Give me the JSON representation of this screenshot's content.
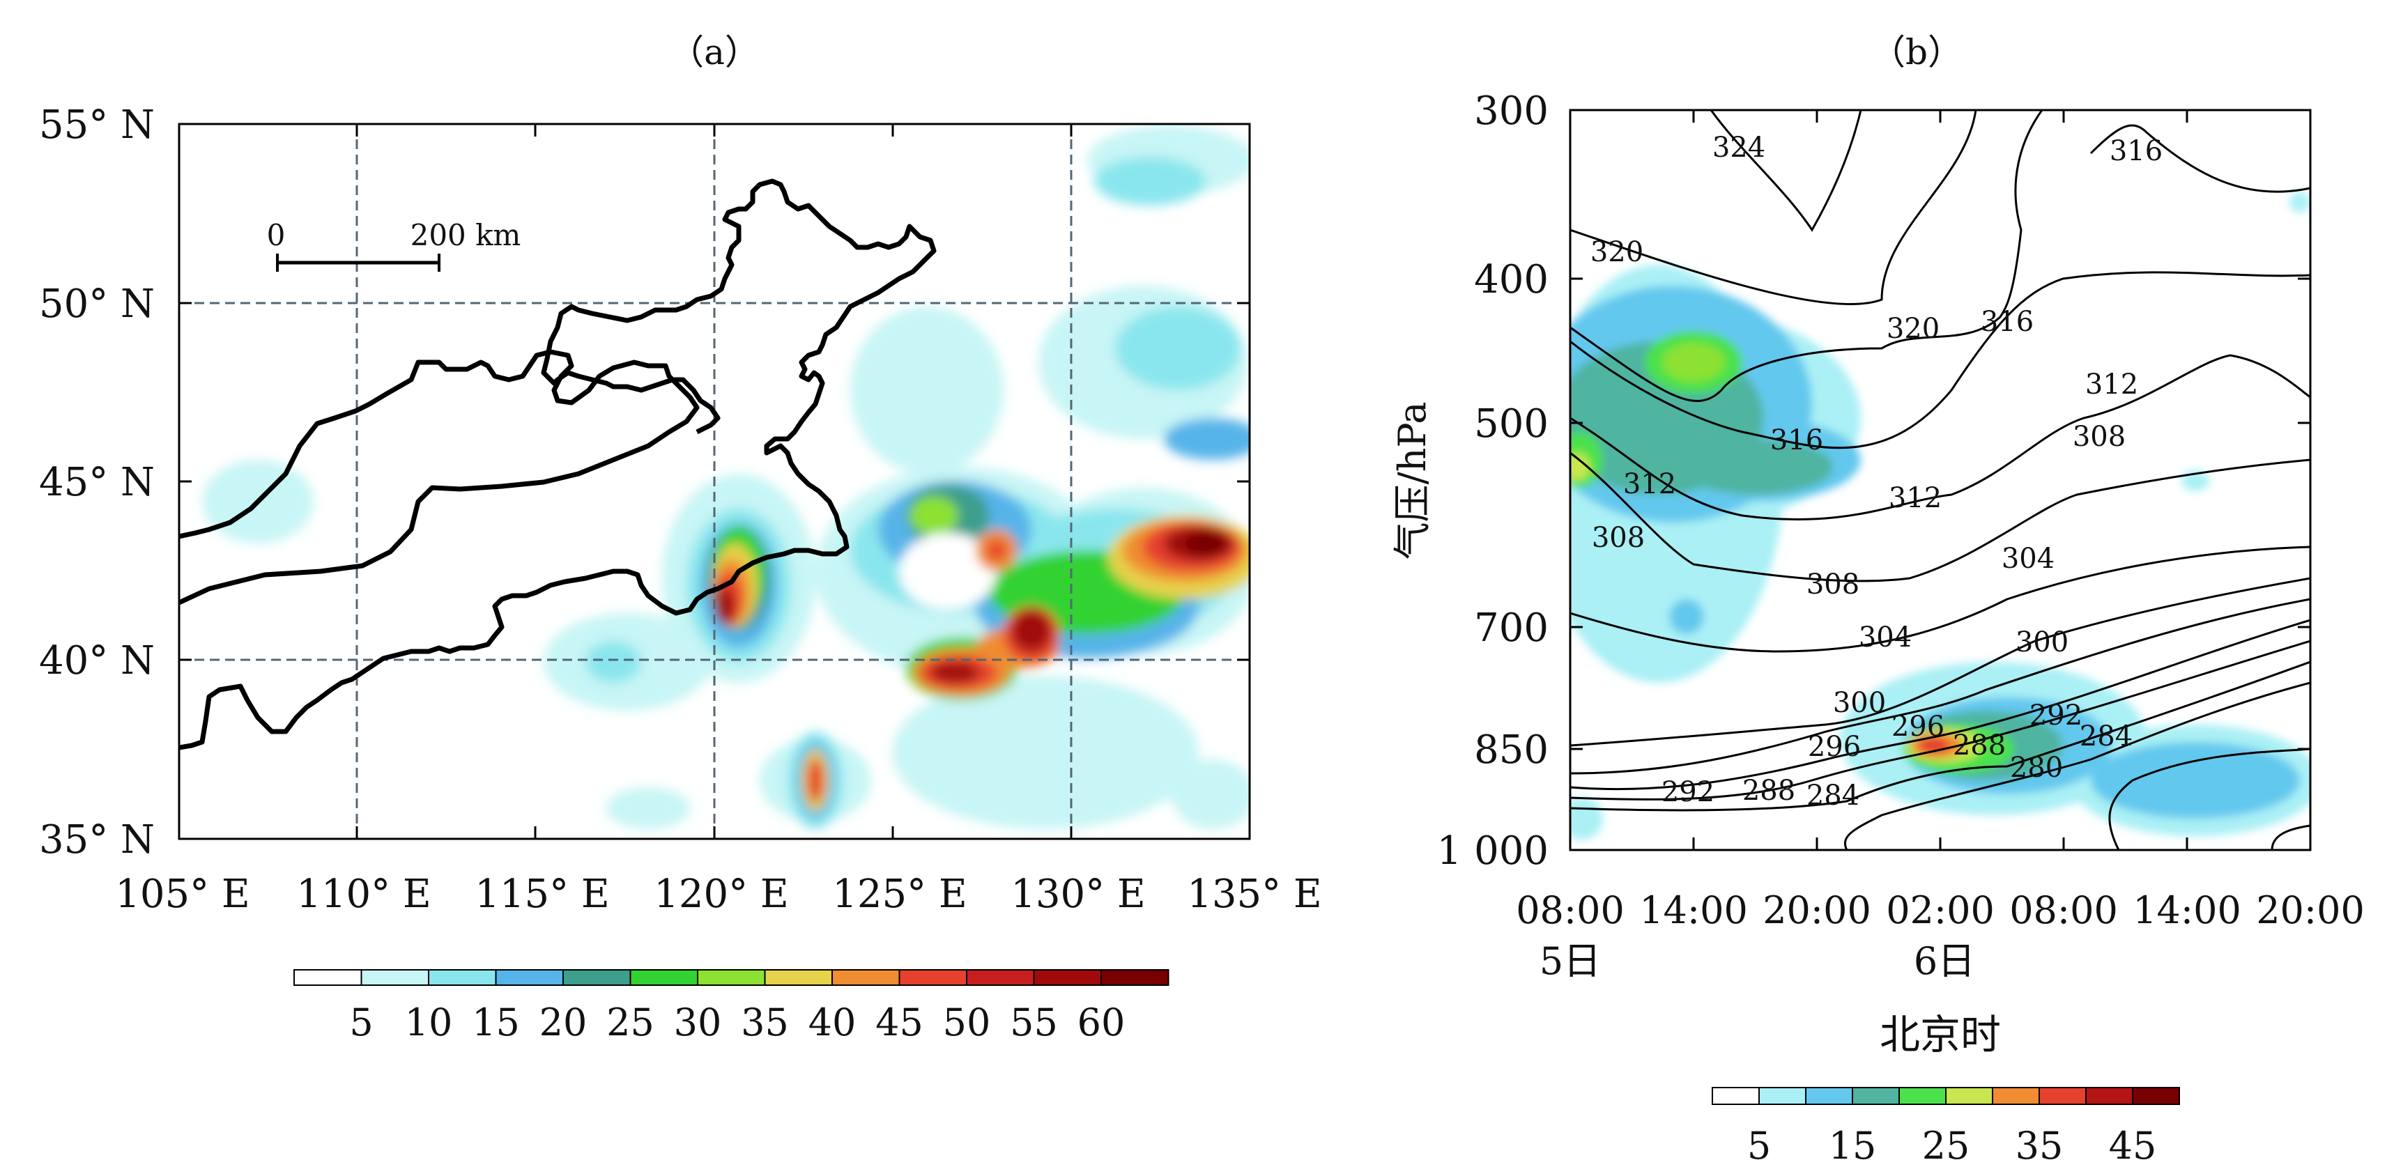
{
  "panel_a": {
    "label": "（a）",
    "lat_ticks": [
      "55° N",
      "50° N",
      "45° N",
      "40° N",
      "35° N"
    ],
    "lon_ticks": [
      "105° E",
      "110° E",
      "115° E",
      "120° E",
      "125° E",
      "130° E",
      "135° E"
    ],
    "scale_bar": {
      "start": "0",
      "end": "200 km"
    },
    "colorbar_labels": [
      "5",
      "10",
      "15",
      "20",
      "25",
      "30",
      "35",
      "40",
      "45",
      "50",
      "55",
      "60"
    ],
    "colorbar_colors": [
      "#ffffff",
      "#c8f5f5",
      "#8ae6ee",
      "#56b4e9",
      "#3c9f8c",
      "#32d232",
      "#8ce132",
      "#e6d24b",
      "#f08c32",
      "#e6412d",
      "#c81e1e",
      "#a00a0a",
      "#780000"
    ]
  },
  "panel_b": {
    "label": "（b）",
    "y_axis_title": "气压/hPa",
    "y_ticks": [
      "300",
      "400",
      "500",
      "700",
      "850",
      "1 000"
    ],
    "x_ticks": [
      "08:00",
      "14:00",
      "20:00",
      "02:00",
      "08:00",
      "14:00",
      "20:00"
    ],
    "date_labels": [
      "5日",
      "6日"
    ],
    "x_axis_title": "北京时",
    "contour_labels": [
      "324",
      "316",
      "320",
      "320",
      "316",
      "316",
      "312",
      "312",
      "312",
      "308",
      "308",
      "308",
      "304",
      "304",
      "300",
      "300",
      "296",
      "292",
      "288",
      "284",
      "296",
      "292",
      "288",
      "284",
      "280"
    ],
    "colorbar_labels": [
      "5",
      "15",
      "25",
      "35",
      "45"
    ],
    "colorbar_colors": [
      "#ffffff",
      "#aaf0f5",
      "#64c8ee",
      "#50b4a0",
      "#4be14b",
      "#c8e650",
      "#f08c32",
      "#e6412d",
      "#b41414",
      "#780000"
    ]
  },
  "chart_data": [
    {
      "type": "heatmap",
      "panel": "（a）",
      "xlim": [
        105,
        135
      ],
      "ylim": [
        35,
        55
      ],
      "x_tick_values": [
        105,
        110,
        115,
        120,
        125,
        130,
        135
      ],
      "y_tick_values": [
        35,
        40,
        45,
        50,
        55
      ],
      "grid": "dashed",
      "colorbar_levels": [
        5,
        10,
        15,
        20,
        25,
        30,
        35,
        40,
        45,
        50,
        55,
        60
      ],
      "maxima": [
        {
          "lon": 121.0,
          "lat": 41.8,
          "value": 55
        },
        {
          "lon": 126.5,
          "lat": 39.6,
          "value": 55
        },
        {
          "lon": 129.0,
          "lat": 40.8,
          "value": 60
        },
        {
          "lon": 132.5,
          "lat": 43.2,
          "value": 60
        },
        {
          "lon": 122.8,
          "lat": 36.5,
          "value": 45
        },
        {
          "lon": 125.3,
          "lat": 44.0,
          "value": 30
        },
        {
          "lon": 127.8,
          "lat": 43.0,
          "value": 45
        }
      ]
    },
    {
      "type": "heatmap",
      "panel": "（b）",
      "x_categories": [
        "5日 08:00",
        "5日 14:00",
        "5日 20:00",
        "6日 02:00",
        "6日 08:00",
        "6日 14:00",
        "6日 20:00"
      ],
      "ylabel": "气压/hPa",
      "xlabel": "北京时",
      "y_tick_values": [
        300,
        400,
        500,
        700,
        850,
        1000
      ],
      "colorbar_levels": [
        5,
        15,
        25,
        35,
        45
      ],
      "contour_levels": [
        280,
        284,
        288,
        292,
        296,
        300,
        304,
        308,
        312,
        316,
        320,
        324
      ],
      "maxima": [
        {
          "time": "6日 02:00",
          "pressure": 850,
          "value": 40
        },
        {
          "time": "5日 14:00",
          "pressure": 450,
          "value": 30
        },
        {
          "time": "5日 08:00",
          "pressure": 520,
          "value": 30
        }
      ]
    }
  ]
}
